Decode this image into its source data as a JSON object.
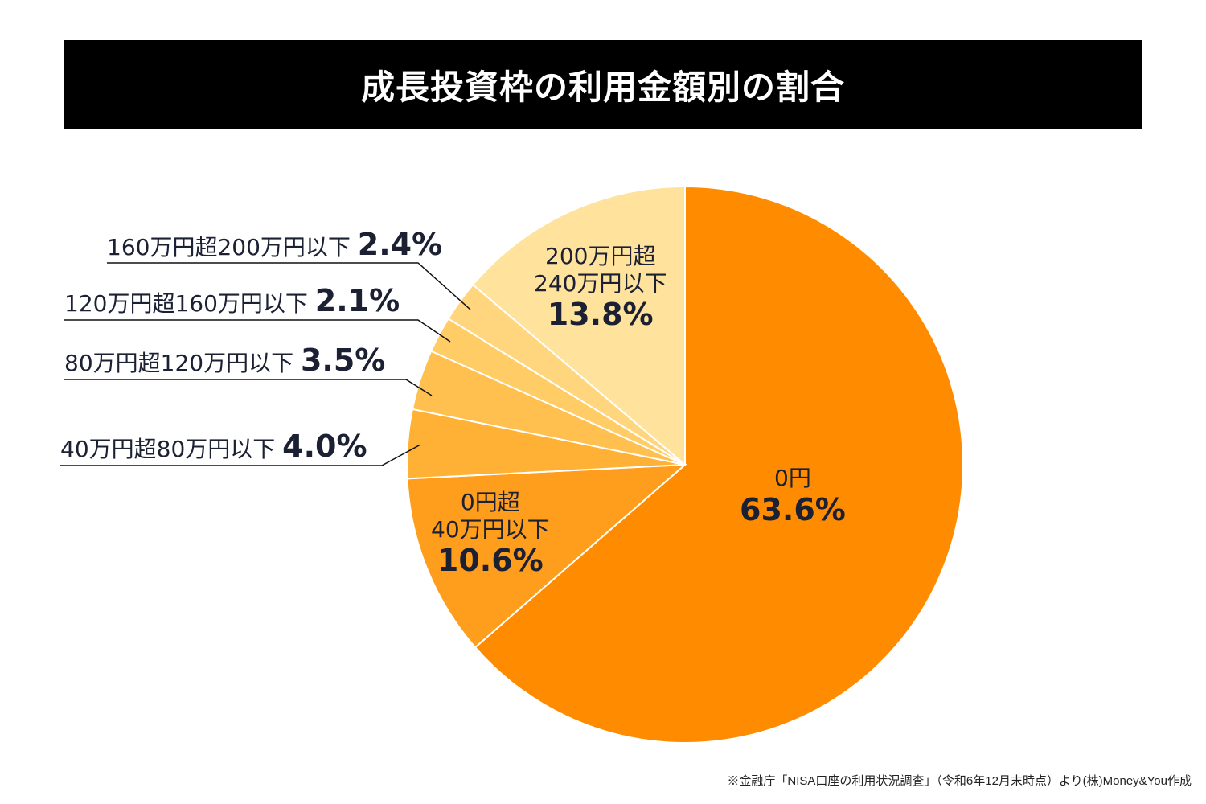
{
  "chart_data": {
    "type": "pie",
    "title": "成長投資枠の利用金額別の割合",
    "start": "top",
    "direction": "clockwise",
    "slices": [
      {
        "label": "0円",
        "value": 63.6,
        "display": "63.6%",
        "color": "#FF8C00"
      },
      {
        "label": "0円超40万円以下",
        "value": 10.6,
        "display": "10.6%",
        "color": "#FF9D1C"
      },
      {
        "label": "40万円超80万円以下",
        "value": 4.0,
        "display": "4.0%",
        "color": "#FFB135"
      },
      {
        "label": "80万円超120万円以下",
        "value": 3.5,
        "display": "3.5%",
        "color": "#FFC04F"
      },
      {
        "label": "120万円超160万円以下",
        "value": 2.1,
        "display": "2.1%",
        "color": "#FFCC66"
      },
      {
        "label": "160万円超200万円以下",
        "value": 2.4,
        "display": "2.4%",
        "color": "#FFD67E"
      },
      {
        "label": "200万円超240万円以下",
        "value": 13.8,
        "display": "13.8%",
        "color": "#FFE39C"
      }
    ],
    "inside_labels": {
      "s0": [
        "0円"
      ],
      "s1": [
        "0円超",
        "40万円以下"
      ],
      "s6": [
        "200万円超",
        "240万円以下"
      ]
    }
  },
  "footer": "※金融庁「NISA口座の利用状況調査」（令和6年12月末時点）より(株)Money&You作成"
}
